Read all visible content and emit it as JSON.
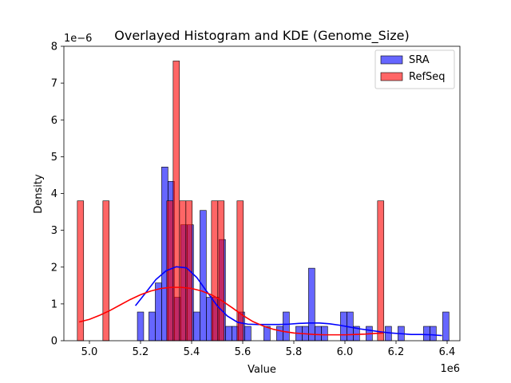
{
  "chart_data": {
    "type": "histogram",
    "title": "Overlayed Histogram and KDE (Genome_Size)",
    "xlabel": "Value",
    "ylabel": "Density",
    "x_offset_label": "1e6",
    "y_offset_label": "1e−6",
    "xlim": [
      4.9,
      6.45
    ],
    "ylim": [
      0,
      8
    ],
    "x_ticks": [
      5.0,
      5.2,
      5.4,
      5.6,
      5.8,
      6.0,
      6.2,
      6.4
    ],
    "x_tick_labels": [
      "5.0",
      "5.2",
      "5.4",
      "5.6",
      "5.8",
      "6.0",
      "6.2",
      "6.4"
    ],
    "y_ticks": [
      0,
      1,
      2,
      3,
      4,
      5,
      6,
      7,
      8
    ],
    "y_tick_labels": [
      "0",
      "1",
      "2",
      "3",
      "4",
      "5",
      "6",
      "7",
      "8"
    ],
    "legend": {
      "position": "top-right",
      "entries": [
        "SRA",
        "RefSeq"
      ]
    },
    "colors": {
      "SRA": "#0000ff",
      "RefSeq": "#ff0000"
    },
    "series": [
      {
        "name": "SRA",
        "kind": "histogram",
        "bin_width": 0.0247,
        "bars": [
          {
            "x": 5.2,
            "y": 0.78
          },
          {
            "x": 5.245,
            "y": 0.78
          },
          {
            "x": 5.27,
            "y": 1.57
          },
          {
            "x": 5.295,
            "y": 4.72
          },
          {
            "x": 5.32,
            "y": 4.33
          },
          {
            "x": 5.345,
            "y": 1.18
          },
          {
            "x": 5.37,
            "y": 3.15
          },
          {
            "x": 5.395,
            "y": 3.15
          },
          {
            "x": 5.42,
            "y": 0.78
          },
          {
            "x": 5.445,
            "y": 3.54
          },
          {
            "x": 5.47,
            "y": 1.18
          },
          {
            "x": 5.495,
            "y": 1.18
          },
          {
            "x": 5.52,
            "y": 2.75
          },
          {
            "x": 5.545,
            "y": 0.39
          },
          {
            "x": 5.57,
            "y": 0.39
          },
          {
            "x": 5.595,
            "y": 0.78
          },
          {
            "x": 5.62,
            "y": 0.39
          },
          {
            "x": 5.695,
            "y": 0.39
          },
          {
            "x": 5.745,
            "y": 0.39
          },
          {
            "x": 5.77,
            "y": 0.78
          },
          {
            "x": 5.82,
            "y": 0.39
          },
          {
            "x": 5.845,
            "y": 0.39
          },
          {
            "x": 5.87,
            "y": 1.97
          },
          {
            "x": 5.895,
            "y": 0.39
          },
          {
            "x": 5.92,
            "y": 0.39
          },
          {
            "x": 5.995,
            "y": 0.78
          },
          {
            "x": 6.02,
            "y": 0.78
          },
          {
            "x": 6.045,
            "y": 0.39
          },
          {
            "x": 6.095,
            "y": 0.39
          },
          {
            "x": 6.17,
            "y": 0.39
          },
          {
            "x": 6.22,
            "y": 0.39
          },
          {
            "x": 6.32,
            "y": 0.39
          },
          {
            "x": 6.345,
            "y": 0.39
          },
          {
            "x": 6.395,
            "y": 0.78
          }
        ],
        "kde": [
          [
            5.18,
            0.95
          ],
          [
            5.22,
            1.3
          ],
          [
            5.26,
            1.66
          ],
          [
            5.3,
            1.9
          ],
          [
            5.34,
            2.01
          ],
          [
            5.38,
            1.98
          ],
          [
            5.42,
            1.72
          ],
          [
            5.46,
            1.33
          ],
          [
            5.5,
            0.95
          ],
          [
            5.54,
            0.67
          ],
          [
            5.58,
            0.5
          ],
          [
            5.62,
            0.45
          ],
          [
            5.66,
            0.44
          ],
          [
            5.7,
            0.44
          ],
          [
            5.74,
            0.44
          ],
          [
            5.78,
            0.45
          ],
          [
            5.82,
            0.47
          ],
          [
            5.86,
            0.48
          ],
          [
            5.9,
            0.48
          ],
          [
            5.94,
            0.46
          ],
          [
            5.98,
            0.42
          ],
          [
            6.02,
            0.37
          ],
          [
            6.06,
            0.32
          ],
          [
            6.1,
            0.28
          ],
          [
            6.14,
            0.24
          ],
          [
            6.18,
            0.21
          ],
          [
            6.22,
            0.19
          ],
          [
            6.26,
            0.17
          ],
          [
            6.3,
            0.17
          ],
          [
            6.34,
            0.16
          ],
          [
            6.38,
            0.14
          ]
        ]
      },
      {
        "name": "RefSeq",
        "kind": "histogram",
        "bin_width": 0.0247,
        "bars": [
          {
            "x": 4.965,
            "y": 3.8
          },
          {
            "x": 5.065,
            "y": 3.8
          },
          {
            "x": 5.315,
            "y": 3.8
          },
          {
            "x": 5.34,
            "y": 7.6
          },
          {
            "x": 5.365,
            "y": 3.8
          },
          {
            "x": 5.39,
            "y": 3.8
          },
          {
            "x": 5.49,
            "y": 3.8
          },
          {
            "x": 5.515,
            "y": 3.8
          },
          {
            "x": 5.59,
            "y": 3.8
          },
          {
            "x": 6.14,
            "y": 3.8
          }
        ],
        "kde": [
          [
            4.96,
            0.51
          ],
          [
            5.0,
            0.58
          ],
          [
            5.04,
            0.69
          ],
          [
            5.08,
            0.82
          ],
          [
            5.12,
            0.97
          ],
          [
            5.16,
            1.12
          ],
          [
            5.2,
            1.25
          ],
          [
            5.24,
            1.35
          ],
          [
            5.28,
            1.42
          ],
          [
            5.32,
            1.45
          ],
          [
            5.36,
            1.45
          ],
          [
            5.4,
            1.42
          ],
          [
            5.44,
            1.35
          ],
          [
            5.48,
            1.24
          ],
          [
            5.52,
            1.08
          ],
          [
            5.56,
            0.89
          ],
          [
            5.6,
            0.69
          ],
          [
            5.64,
            0.52
          ],
          [
            5.68,
            0.4
          ],
          [
            5.72,
            0.31
          ],
          [
            5.76,
            0.25
          ],
          [
            5.8,
            0.21
          ],
          [
            5.84,
            0.19
          ],
          [
            5.88,
            0.17
          ],
          [
            5.92,
            0.16
          ],
          [
            5.96,
            0.16
          ],
          [
            6.0,
            0.16
          ],
          [
            6.04,
            0.17
          ],
          [
            6.08,
            0.18
          ],
          [
            6.12,
            0.2
          ],
          [
            6.15,
            0.21
          ]
        ]
      }
    ]
  }
}
